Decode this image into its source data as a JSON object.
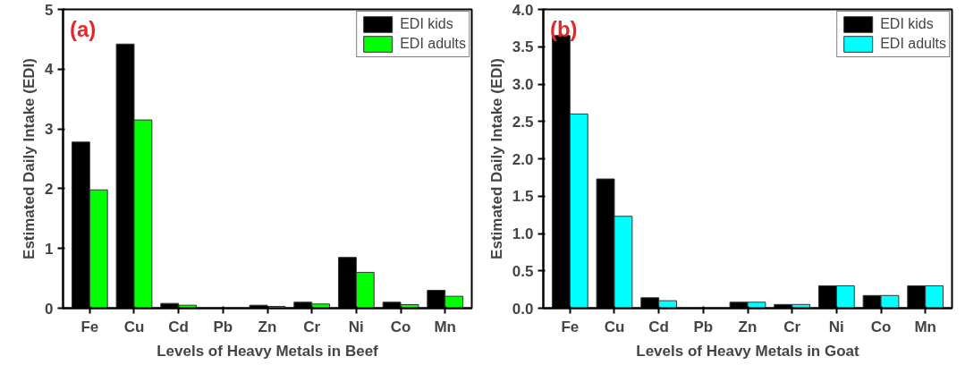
{
  "chart_data": [
    {
      "type": "bar",
      "xlabel": "Levels of Heavy Metals in Beef",
      "ylabel": "Estimated Daily Intake (EDI)",
      "annotations": [
        "(a)"
      ],
      "categories": [
        "Fe",
        "Cu",
        "Cd",
        "Pb",
        "Zn",
        "Cr",
        "Ni",
        "Co",
        "Mn"
      ],
      "series": [
        {
          "name": "EDI kids",
          "color": "#000000",
          "values": [
            2.78,
            4.42,
            0.08,
            0,
            0.05,
            0.1,
            0.85,
            0.1,
            0.3
          ]
        },
        {
          "name": "EDI adults",
          "color": "#00ff00",
          "values": [
            1.98,
            3.15,
            0.05,
            0,
            0.03,
            0.07,
            0.6,
            0.06,
            0.2
          ]
        }
      ],
      "ylim": [
        0,
        5
      ],
      "yticks": [
        0,
        1,
        2,
        3,
        4,
        5
      ],
      "grid": false,
      "legend": "top right"
    },
    {
      "type": "bar",
      "xlabel": "Levels of Heavy Metals in Goat",
      "ylabel": "Estimated Daily Intake (EDI)",
      "annotations": [
        "(b)"
      ],
      "categories": [
        "Fe",
        "Cu",
        "Cd",
        "Pb",
        "Zn",
        "Cr",
        "Ni",
        "Co",
        "Mn"
      ],
      "series": [
        {
          "name": "EDI kids",
          "color": "#000000",
          "values": [
            3.65,
            1.73,
            0.14,
            0,
            0.08,
            0.05,
            0.3,
            0.17,
            0.3
          ]
        },
        {
          "name": "EDI adults",
          "color": "#00ffff",
          "values": [
            2.6,
            1.23,
            0.1,
            0,
            0.08,
            0.05,
            0.3,
            0.17,
            0.3
          ]
        }
      ],
      "ylim": [
        0,
        4
      ],
      "yticks": [
        {
          "value": 0,
          "label": "0.0"
        },
        {
          "value": 0.5,
          "label": "0.5"
        },
        {
          "value": 1,
          "label": "1.0"
        },
        {
          "value": 1.5,
          "label": "1.5"
        },
        {
          "value": 2,
          "label": "2.0"
        },
        {
          "value": 2.5,
          "label": "2.5"
        },
        {
          "value": 3,
          "label": "3.0"
        },
        {
          "value": 3.5,
          "label": "3.5"
        },
        {
          "value": 4,
          "label": "4.0"
        }
      ],
      "grid": false,
      "legend": "top right"
    }
  ]
}
